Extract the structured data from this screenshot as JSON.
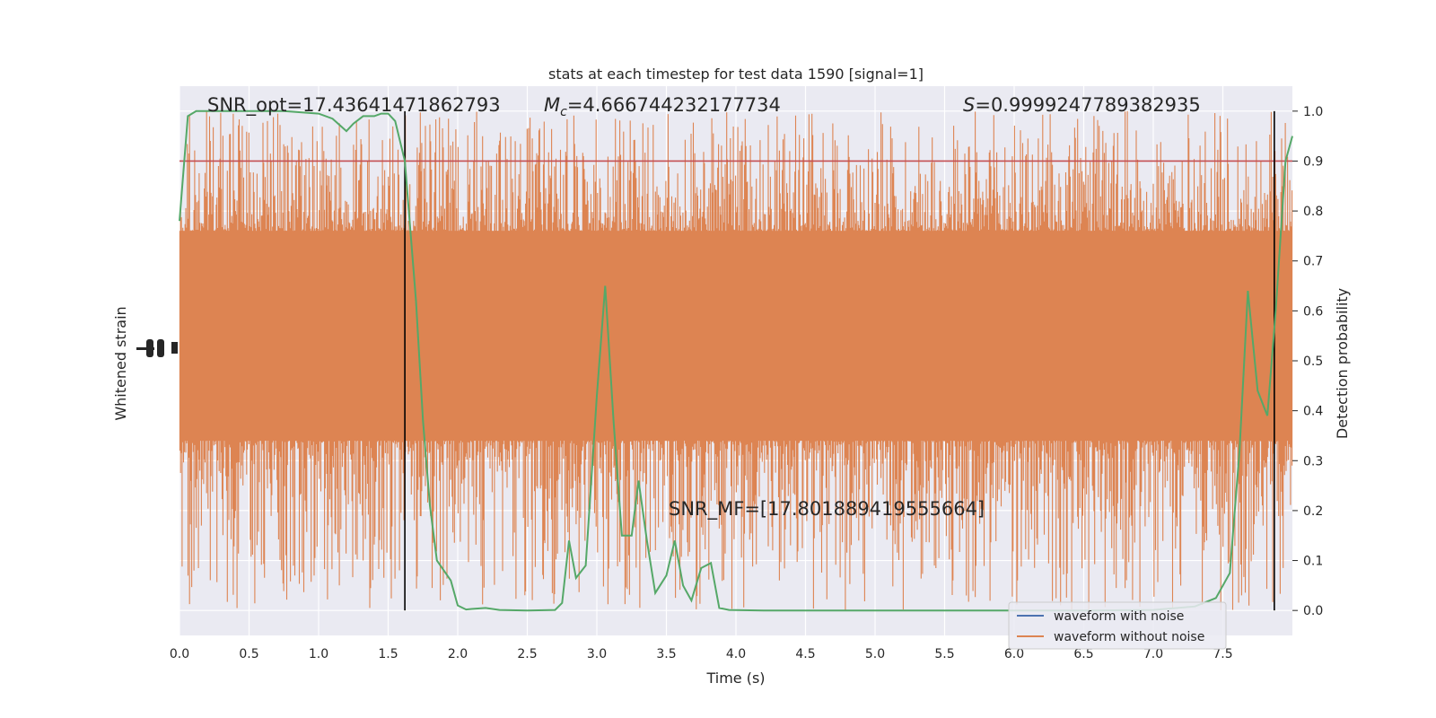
{
  "chart_data": {
    "type": "line",
    "title": "stats at each timestep for test data 1590 [signal=1]",
    "xlabel": "Time (s)",
    "ylabel_left": "Whitened strain",
    "ylabel_right": "Detection probability",
    "xlim": [
      0,
      8
    ],
    "ylim_right": [
      -0.05,
      1.05
    ],
    "x_ticks": [
      "0.0",
      "0.5",
      "1.0",
      "1.5",
      "2.0",
      "2.5",
      "3.0",
      "3.5",
      "4.0",
      "4.5",
      "5.0",
      "5.5",
      "6.0",
      "6.5",
      "7.0",
      "7.5"
    ],
    "y_ticks_right": [
      "0.0",
      "0.1",
      "0.2",
      "0.3",
      "0.4",
      "0.5",
      "0.6",
      "0.7",
      "0.8",
      "0.9",
      "1.0"
    ],
    "grid": true,
    "annotations": {
      "snr_opt": "SNR_opt=17.43641471862793",
      "mc_symbol": "M",
      "mc_subscript": "c",
      "mc_value": "=4.666744232177734",
      "s_symbol": "S",
      "s_value": "=0.9999247789382935",
      "snr_mf": "SNR_MF=[17.801889419555664]"
    },
    "threshold": 0.9,
    "vertical_lines_x": [
      1.62,
      7.87
    ],
    "detection_probability": {
      "x": [
        0.0,
        0.06,
        0.12,
        0.25,
        0.5,
        0.75,
        1.0,
        1.1,
        1.2,
        1.25,
        1.32,
        1.4,
        1.45,
        1.5,
        1.55,
        1.62,
        1.7,
        1.75,
        1.8,
        1.85,
        1.95,
        2.0,
        2.06,
        2.1,
        2.2,
        2.3,
        2.5,
        2.7,
        2.75,
        2.8,
        2.85,
        2.92,
        3.0,
        3.06,
        3.12,
        3.18,
        3.25,
        3.3,
        3.36,
        3.42,
        3.5,
        3.56,
        3.62,
        3.68,
        3.75,
        3.82,
        3.88,
        3.95,
        4.2,
        4.5,
        5.0,
        5.5,
        6.0,
        6.5,
        7.0,
        7.3,
        7.45,
        7.55,
        7.62,
        7.68,
        7.75,
        7.82,
        7.88,
        7.95,
        8.0
      ],
      "y": [
        0.78,
        0.99,
        1.0,
        1.0,
        1.0,
        1.0,
        0.995,
        0.985,
        0.96,
        0.975,
        0.99,
        0.99,
        0.995,
        0.995,
        0.98,
        0.9,
        0.62,
        0.38,
        0.21,
        0.1,
        0.06,
        0.01,
        0.002,
        0.003,
        0.005,
        0.001,
        0.0,
        0.001,
        0.015,
        0.14,
        0.065,
        0.09,
        0.43,
        0.65,
        0.38,
        0.15,
        0.15,
        0.26,
        0.14,
        0.035,
        0.07,
        0.14,
        0.05,
        0.02,
        0.085,
        0.095,
        0.005,
        0.001,
        0.0,
        0.0,
        0.0,
        0.0,
        0.0,
        0.0,
        0.001,
        0.008,
        0.025,
        0.075,
        0.32,
        0.64,
        0.44,
        0.39,
        0.6,
        0.9,
        0.95
      ]
    },
    "strain_band": {
      "core_fill_range": [
        0.34,
        0.76
      ],
      "spike_max": 1.0,
      "spike_min": 0.0
    },
    "series": [
      {
        "name": "waveform with noise",
        "color": "#4c72b0"
      },
      {
        "name": "waveform without noise",
        "color": "#dd8452"
      }
    ],
    "detection_color": "#55a868",
    "threshold_color": "#c44e52",
    "legend_position": "lower-right"
  }
}
